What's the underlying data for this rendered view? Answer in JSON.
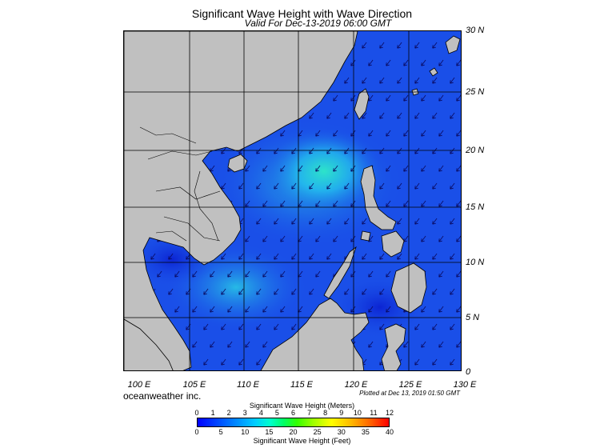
{
  "header": {
    "title": "Significant Wave Height with Wave Direction",
    "subtitle": "Valid For Dec-13-2019 06:00 GMT"
  },
  "map": {
    "lat_labels": [
      "30 N",
      "25 N",
      "20 N",
      "15 N",
      "10 N",
      "5 N",
      "0"
    ],
    "lon_labels": [
      "100 E",
      "105 E",
      "110 E",
      "115 E",
      "120 E",
      "125 E",
      "130 E"
    ],
    "land_color": "#c0c0c0",
    "sea_color": "#1a4fe8",
    "high_wave_color": "#1ee0d0"
  },
  "footer": {
    "credit": "oceanweather inc.",
    "plotted": "Plotted at Dec 13, 2019 01:50 GMT"
  },
  "colorbar": {
    "title_meters": "Significant Wave Height (Meters)",
    "title_feet": "Significant Wave Height (Feet)",
    "meter_ticks": [
      "0",
      "1",
      "2",
      "3",
      "4",
      "5",
      "6",
      "7",
      "8",
      "9",
      "10",
      "11",
      "12"
    ],
    "feet_ticks": [
      "0",
      "5",
      "10",
      "15",
      "20",
      "25",
      "30",
      "35",
      "40"
    ]
  }
}
